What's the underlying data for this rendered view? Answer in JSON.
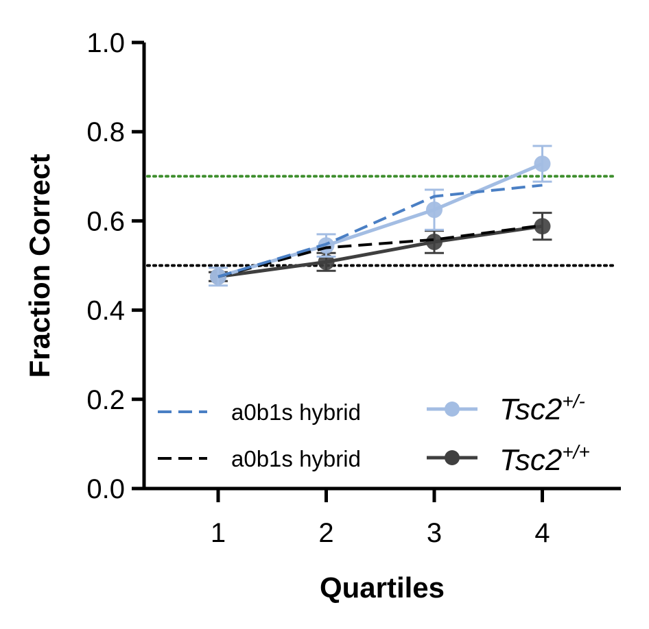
{
  "chart_data": {
    "type": "line",
    "xlabel": "Quartiles",
    "ylabel": "Fraction Correct",
    "xlim": [
      0.95,
      4.6
    ],
    "ylim": [
      0.0,
      1.0
    ],
    "x_ticks": [
      "1",
      "2",
      "3",
      "4"
    ],
    "y_ticks": [
      "0.0",
      "0.2",
      "0.4",
      "0.6",
      "0.8",
      "1.0"
    ],
    "x": [
      1,
      2,
      3,
      4
    ],
    "reference_lines": [
      {
        "y": 0.7,
        "color": "#3f8f2f",
        "style": "dotted"
      },
      {
        "y": 0.5,
        "color": "#000000",
        "style": "dotted"
      }
    ],
    "series": [
      {
        "name": "Tsc2",
        "superscript": "+/-",
        "values": [
          0.475,
          0.545,
          0.625,
          0.728
        ],
        "errors": [
          0.02,
          0.025,
          0.045,
          0.04
        ],
        "color": "#a3bde3",
        "style": "solid",
        "marker": "circle"
      },
      {
        "name": "Tsc2",
        "superscript": "+/+",
        "values": [
          0.475,
          0.508,
          0.553,
          0.588
        ],
        "errors": [
          0.01,
          0.02,
          0.025,
          0.03
        ],
        "color": "#3f3f3f",
        "style": "solid",
        "marker": "circle"
      },
      {
        "name": "a0b1s hybrid",
        "values": [
          0.475,
          0.548,
          0.655,
          0.68
        ],
        "color": "#4a7fc4",
        "style": "dashed",
        "marker": "none"
      },
      {
        "name": "a0b1s hybrid",
        "values": [
          0.475,
          0.54,
          0.558,
          0.59
        ],
        "color": "#000000",
        "style": "dashed",
        "marker": "none"
      }
    ],
    "grid": false,
    "legend_position": "bottom"
  }
}
